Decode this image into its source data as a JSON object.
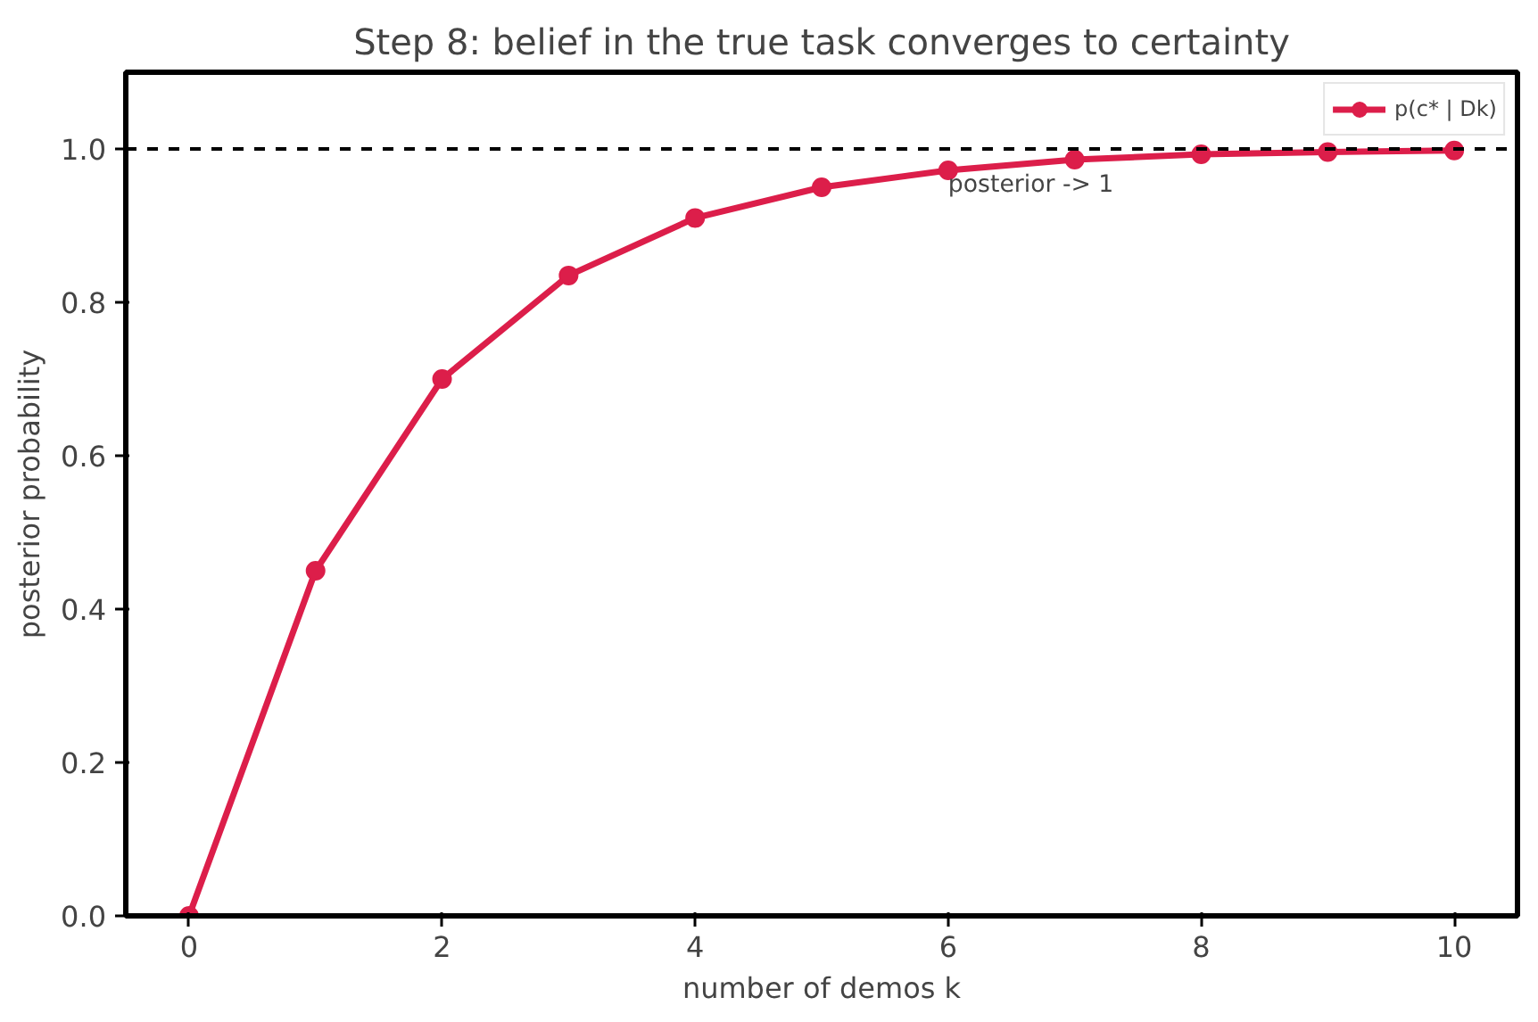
{
  "chart_data": {
    "type": "line",
    "title": "Step 8: belief in the true task converges to certainty",
    "xlabel": "number of demos k",
    "ylabel": "posterior probability",
    "x": [
      0,
      1,
      2,
      3,
      4,
      5,
      6,
      7,
      8,
      9,
      10
    ],
    "series": [
      {
        "name": "p(c* | Dk)",
        "color": "#dc1e4a",
        "values": [
          0.0,
          0.45,
          0.7,
          0.835,
          0.91,
          0.95,
          0.972,
          0.986,
          0.993,
          0.996,
          0.998
        ]
      }
    ],
    "xlim": [
      -0.5,
      10.5
    ],
    "ylim": [
      0,
      1.1
    ],
    "xticks": [
      0,
      2,
      4,
      6,
      8,
      10
    ],
    "yticks": [
      {
        "value": 0,
        "label": "0.0"
      },
      {
        "value": 0.2,
        "label": "0.2"
      },
      {
        "value": 0.4,
        "label": "0.4"
      },
      {
        "value": 0.6,
        "label": "0.6"
      },
      {
        "value": 0.8,
        "label": "0.8"
      },
      {
        "value": 1.0,
        "label": "1.0"
      }
    ],
    "ref_lines": [
      {
        "axis": "y",
        "value": 1.0,
        "color": "#000000",
        "line_style": "dashed"
      }
    ],
    "annotations": [
      {
        "text": "posterior -> 1",
        "x": 6,
        "y": 0.97
      }
    ],
    "marker": "circle",
    "line_style": "solid",
    "legend": "top right",
    "grid": false
  }
}
